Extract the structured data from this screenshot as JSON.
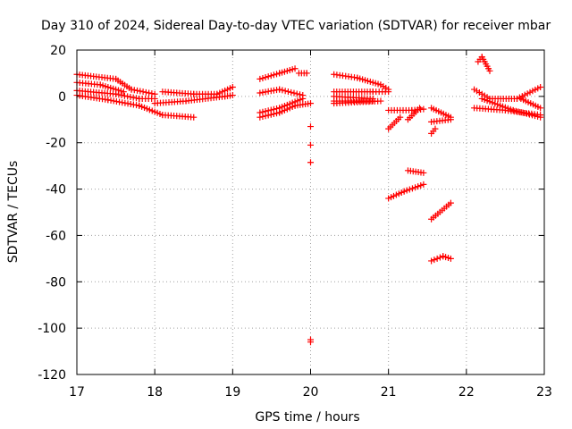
{
  "chart_data": {
    "type": "scatter",
    "title": "Day 310 of 2024, Sidereal Day-to-day VTEC variation (SDTVAR) for receiver mbar",
    "xlabel": "GPS time / hours",
    "ylabel": "SDTVAR / TECUs",
    "xlim": [
      17,
      23
    ],
    "ylim": [
      -120,
      20
    ],
    "xticks": [
      17,
      18,
      19,
      20,
      21,
      22,
      23
    ],
    "yticks": [
      20,
      0,
      -20,
      -40,
      -60,
      -80,
      -100,
      -120
    ],
    "grid": true,
    "marker": "+",
    "color": "#ff0000",
    "segments": [
      {
        "x0": 17.0,
        "y0": 9.5,
        "x1": 17.5,
        "y1": 7.5
      },
      {
        "x0": 17.5,
        "y0": 7.5,
        "x1": 17.7,
        "y1": 3.0
      },
      {
        "x0": 17.7,
        "y0": 3.0,
        "x1": 18.0,
        "y1": 1.0
      },
      {
        "x0": 17.0,
        "y0": 6.0,
        "x1": 17.3,
        "y1": 5.0
      },
      {
        "x0": 17.3,
        "y0": 5.0,
        "x1": 17.6,
        "y1": 2.0
      },
      {
        "x0": 17.0,
        "y0": 2.5,
        "x1": 17.5,
        "y1": 1.0
      },
      {
        "x0": 17.5,
        "y0": 1.0,
        "x1": 17.8,
        "y1": -1.0
      },
      {
        "x0": 17.8,
        "y0": -1.0,
        "x1": 18.0,
        "y1": -1.0
      },
      {
        "x0": 17.0,
        "y0": 0.5,
        "x1": 17.4,
        "y1": -1.5
      },
      {
        "x0": 17.4,
        "y0": -1.5,
        "x1": 17.8,
        "y1": -4.0
      },
      {
        "x0": 17.8,
        "y0": -4.0,
        "x1": 18.1,
        "y1": -8.0
      },
      {
        "x0": 18.1,
        "y0": -8.0,
        "x1": 18.5,
        "y1": -9.0
      },
      {
        "x0": 18.1,
        "y0": 2.0,
        "x1": 18.5,
        "y1": 1.0
      },
      {
        "x0": 18.5,
        "y0": 1.0,
        "x1": 18.8,
        "y1": 1.0
      },
      {
        "x0": 18.8,
        "y0": 1.0,
        "x1": 19.0,
        "y1": 4.0
      },
      {
        "x0": 18.0,
        "y0": -3.0,
        "x1": 18.4,
        "y1": -2.0
      },
      {
        "x0": 18.4,
        "y0": -2.0,
        "x1": 18.9,
        "y1": 0.0
      },
      {
        "x0": 18.9,
        "y0": 0.0,
        "x1": 19.0,
        "y1": 0.5
      },
      {
        "x0": 19.35,
        "y0": 7.5,
        "x1": 19.6,
        "y1": 10.0
      },
      {
        "x0": 19.6,
        "y0": 10.0,
        "x1": 19.8,
        "y1": 12.0
      },
      {
        "x0": 19.35,
        "y0": 1.5,
        "x1": 19.6,
        "y1": 3.0
      },
      {
        "x0": 19.6,
        "y0": 3.0,
        "x1": 19.9,
        "y1": 0.5
      },
      {
        "x0": 19.35,
        "y0": -7.0,
        "x1": 19.6,
        "y1": -5.0
      },
      {
        "x0": 19.6,
        "y0": -5.0,
        "x1": 19.9,
        "y1": -1.0
      },
      {
        "x0": 19.35,
        "y0": -9.0,
        "x1": 19.6,
        "y1": -7.0
      },
      {
        "x0": 19.6,
        "y0": -7.0,
        "x1": 19.8,
        "y1": -4.0
      },
      {
        "x0": 19.8,
        "y0": -4.0,
        "x1": 20.0,
        "y1": -3.0
      },
      {
        "x0": 19.85,
        "y0": 10.0,
        "x1": 19.95,
        "y1": 10.0
      },
      {
        "x0": 20.3,
        "y0": 9.5,
        "x1": 20.6,
        "y1": 8.0
      },
      {
        "x0": 20.6,
        "y0": 8.0,
        "x1": 20.9,
        "y1": 5.0
      },
      {
        "x0": 20.9,
        "y0": 5.0,
        "x1": 21.0,
        "y1": 3.0
      },
      {
        "x0": 20.3,
        "y0": 2.0,
        "x1": 20.8,
        "y1": 2.0
      },
      {
        "x0": 20.8,
        "y0": 2.0,
        "x1": 21.0,
        "y1": 2.0
      },
      {
        "x0": 20.3,
        "y0": 0.0,
        "x1": 20.8,
        "y1": -1.0
      },
      {
        "x0": 20.3,
        "y0": -2.0,
        "x1": 20.8,
        "y1": -2.0
      },
      {
        "x0": 20.3,
        "y0": -3.0,
        "x1": 20.9,
        "y1": -2.0
      },
      {
        "x0": 21.0,
        "y0": -6.0,
        "x1": 21.3,
        "y1": -6.0
      },
      {
        "x0": 21.3,
        "y0": -6.0,
        "x1": 21.45,
        "y1": -5.5
      },
      {
        "x0": 21.0,
        "y0": -14.0,
        "x1": 21.15,
        "y1": -9.0
      },
      {
        "x0": 21.25,
        "y0": -10.0,
        "x1": 21.4,
        "y1": -5.0
      },
      {
        "x0": 21.0,
        "y0": -44.0,
        "x1": 21.2,
        "y1": -41.0
      },
      {
        "x0": 21.2,
        "y0": -41.0,
        "x1": 21.45,
        "y1": -38.0
      },
      {
        "x0": 21.25,
        "y0": -32.0,
        "x1": 21.45,
        "y1": -33.0
      },
      {
        "x0": 21.55,
        "y0": -5.0,
        "x1": 21.8,
        "y1": -9.0
      },
      {
        "x0": 21.55,
        "y0": -11.0,
        "x1": 21.8,
        "y1": -10.0
      },
      {
        "x0": 21.55,
        "y0": -16.0,
        "x1": 21.6,
        "y1": -14.0
      },
      {
        "x0": 21.55,
        "y0": -53.0,
        "x1": 21.8,
        "y1": -46.0
      },
      {
        "x0": 21.55,
        "y0": -71.0,
        "x1": 21.7,
        "y1": -69.0
      },
      {
        "x0": 21.7,
        "y0": -69.0,
        "x1": 21.8,
        "y1": -70.0
      },
      {
        "x0": 22.15,
        "y0": 15.0,
        "x1": 22.2,
        "y1": 17.0
      },
      {
        "x0": 22.2,
        "y0": 17.0,
        "x1": 22.3,
        "y1": 11.0
      },
      {
        "x0": 22.1,
        "y0": 3.0,
        "x1": 22.3,
        "y1": -1.0
      },
      {
        "x0": 22.3,
        "y0": -1.0,
        "x1": 22.65,
        "y1": -1.0
      },
      {
        "x0": 22.65,
        "y0": -1.0,
        "x1": 22.95,
        "y1": 4.0
      },
      {
        "x0": 22.1,
        "y0": -5.0,
        "x1": 22.5,
        "y1": -6.0
      },
      {
        "x0": 22.5,
        "y0": -6.0,
        "x1": 22.95,
        "y1": -8.0
      },
      {
        "x0": 22.2,
        "y0": -1.0,
        "x1": 22.6,
        "y1": -6.0
      },
      {
        "x0": 22.6,
        "y0": -6.0,
        "x1": 22.95,
        "y1": -9.0
      },
      {
        "x0": 22.7,
        "y0": -1.0,
        "x1": 22.95,
        "y1": -5.0
      }
    ],
    "points": [
      {
        "x": 19.95,
        "y": 10.0
      },
      {
        "x": 20.0,
        "y": -13.0
      },
      {
        "x": 20.0,
        "y": -21.0
      },
      {
        "x": 20.0,
        "y": -28.5
      },
      {
        "x": 20.0,
        "y": -105.0
      },
      {
        "x": 20.0,
        "y": -106.0
      }
    ]
  }
}
